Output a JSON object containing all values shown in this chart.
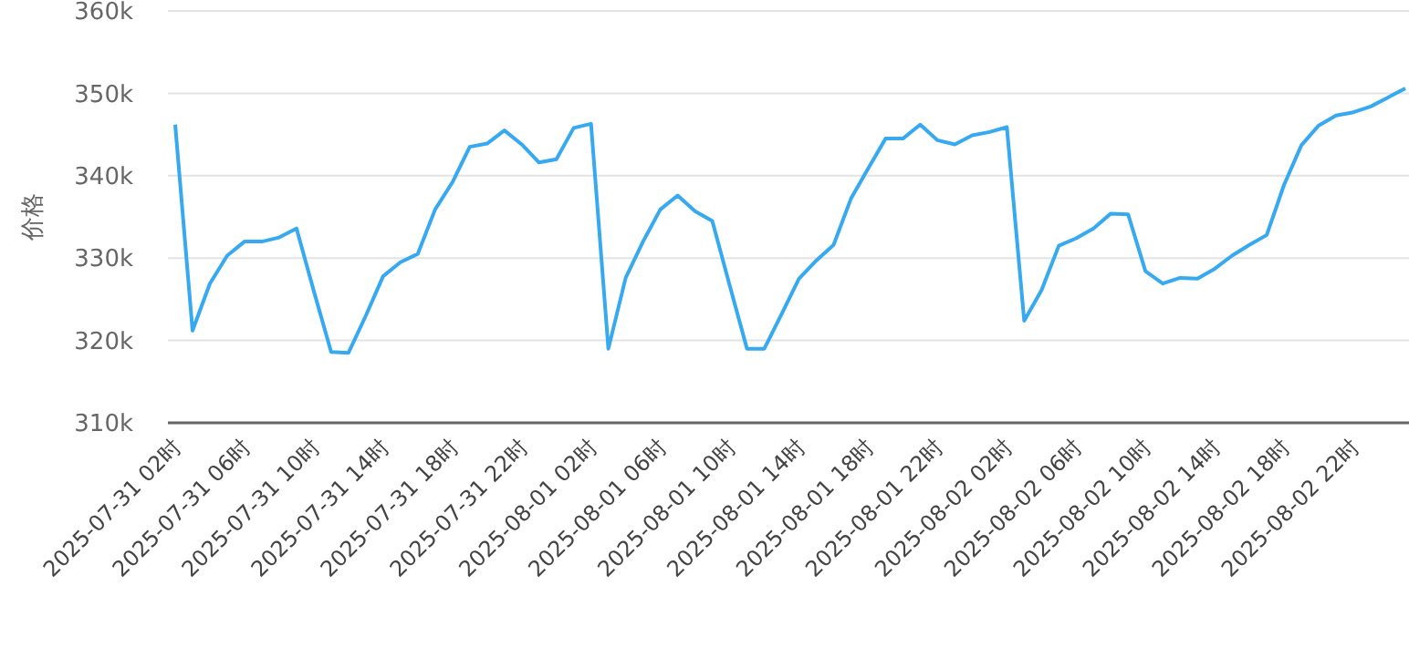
{
  "chart_data": {
    "type": "line",
    "ylabel": "价格",
    "categories": [
      "2025-07-31 02时",
      null,
      null,
      null,
      "2025-07-31 06时",
      null,
      null,
      null,
      "2025-07-31 10时",
      null,
      null,
      null,
      "2025-07-31 14时",
      null,
      null,
      null,
      "2025-07-31 18时",
      null,
      null,
      null,
      "2025-07-31 22时",
      null,
      null,
      null,
      "2025-08-01 02时",
      null,
      null,
      null,
      "2025-08-01 06时",
      null,
      null,
      null,
      "2025-08-01 10时",
      null,
      null,
      null,
      "2025-08-01 14时",
      null,
      null,
      null,
      "2025-08-01 18时",
      null,
      null,
      null,
      "2025-08-01 22时",
      null,
      null,
      null,
      "2025-08-02 02时",
      null,
      null,
      null,
      "2025-08-02 06时",
      null,
      null,
      null,
      "2025-08-02 10时",
      null,
      null,
      null,
      "2025-08-02 14时",
      null,
      null,
      null,
      "2025-08-02 18时",
      null,
      null,
      null,
      "2025-08-02 22时",
      null,
      null,
      null
    ],
    "series": [
      {
        "color": "#36a9f0",
        "values": [
          346200,
          321200,
          326900,
          330300,
          332000,
          332000,
          332500,
          333600,
          326000,
          318600,
          318500,
          323000,
          327800,
          329500,
          330500,
          335900,
          339200,
          343500,
          343900,
          345500,
          343800,
          341600,
          342000,
          345800,
          346300,
          319000,
          327600,
          332000,
          335900,
          337600,
          335700,
          334500,
          326700,
          319000,
          319000,
          323200,
          327500,
          329700,
          331600,
          337200,
          340900,
          344500,
          344500,
          346200,
          344300,
          343800,
          344900,
          345300,
          345900,
          322400,
          326100,
          331500,
          332400,
          333600,
          335400,
          335300,
          328400,
          326900,
          327600,
          327500,
          328700,
          330300,
          331600,
          332800,
          338900,
          343700,
          346100,
          347300,
          347700,
          348400,
          349500,
          350600
        ]
      }
    ],
    "ylim": [
      310000,
      360000
    ],
    "yticks": [
      {
        "value": 310000,
        "label": "310k"
      },
      {
        "value": 320000,
        "label": "320k"
      },
      {
        "value": 330000,
        "label": "330k"
      },
      {
        "value": 340000,
        "label": "340k"
      },
      {
        "value": 350000,
        "label": "350k"
      },
      {
        "value": 360000,
        "label": "360k"
      }
    ],
    "grid": "y",
    "marker": "none",
    "line_style": "solid"
  }
}
